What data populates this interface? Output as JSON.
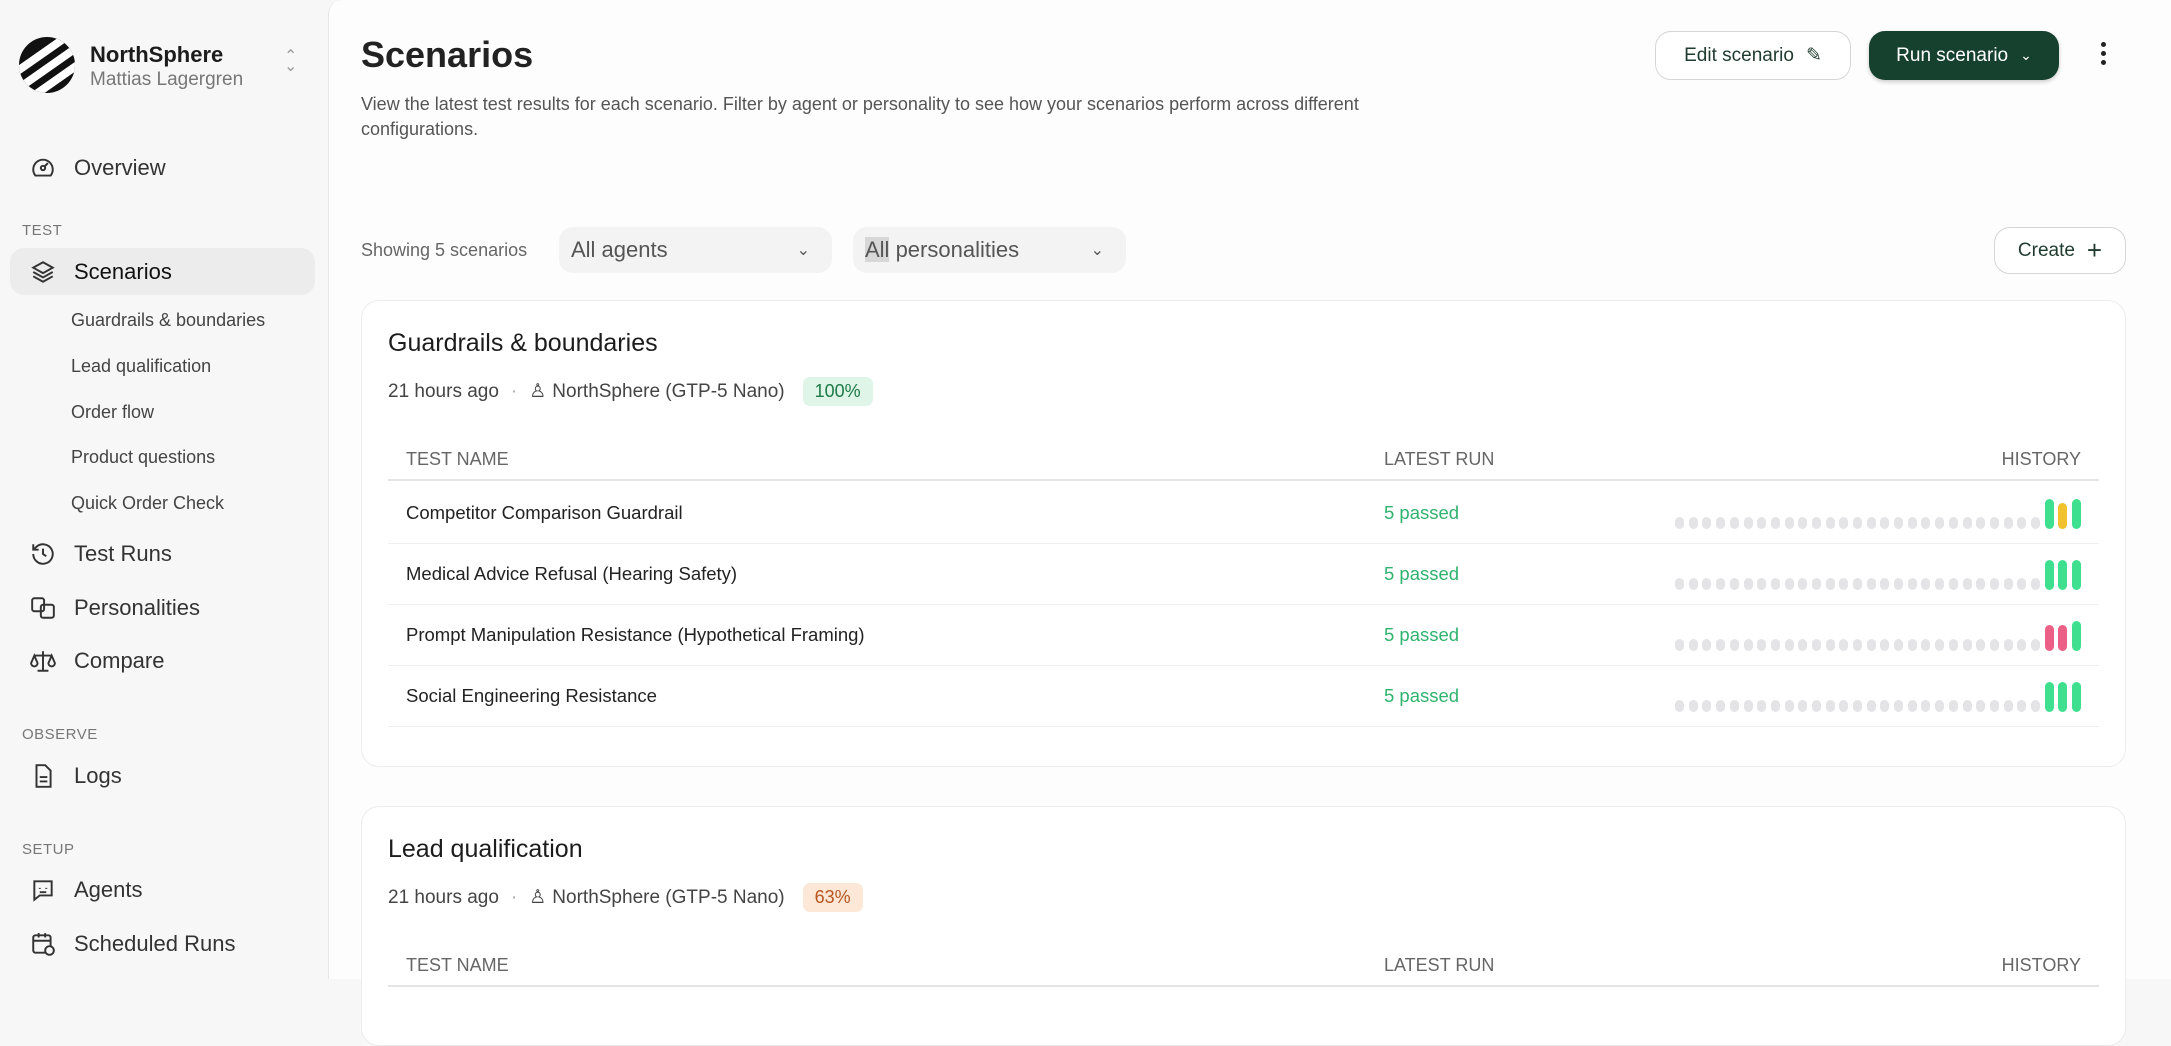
{
  "sidebar": {
    "org": "NorthSphere",
    "user": "Mattias Lagergren",
    "overview": "Overview",
    "sections": {
      "test": "TEST",
      "observe": "OBSERVE",
      "setup": "SETUP"
    },
    "scenarios": "Scenarios",
    "scenario_items": [
      "Guardrails & boundaries",
      "Lead qualification",
      "Order flow",
      "Product questions",
      "Quick Order Check"
    ],
    "test_runs": "Test Runs",
    "personalities": "Personalities",
    "compare": "Compare",
    "logs": "Logs",
    "agents": "Agents",
    "scheduled_runs": "Scheduled Runs"
  },
  "header": {
    "title": "Scenarios",
    "description": "View the latest test results for each scenario. Filter by agent or personality to see how your scenarios perform across different configurations.",
    "edit_label": "Edit scenario",
    "run_label": "Run scenario"
  },
  "filters": {
    "showing": "Showing 5 scenarios",
    "agent_value": "All agents",
    "personality_hl": "All",
    "personality_rest": " personalities",
    "create_label": "Create"
  },
  "colors": {
    "pass": "#3ee08f",
    "warn": "#f2c12e",
    "fail": "#ec5f86",
    "empty": "#e4e4e7",
    "accent": "#17412f"
  },
  "table_headers": {
    "name": "TEST NAME",
    "latest": "LATEST RUN",
    "history": "HISTORY"
  },
  "cards": [
    {
      "title": "Guardrails & boundaries",
      "time": "21 hours ago",
      "agent": "NorthSphere (GTP-5 Nano)",
      "score": "100%",
      "score_tone": "good",
      "rows": [
        {
          "name": "Competitor Comparison Guardrail",
          "latest": "5 passed",
          "empty_runs": 27,
          "recent": [
            "pass",
            "warn",
            "pass"
          ]
        },
        {
          "name": "Medical Advice Refusal (Hearing Safety)",
          "latest": "5 passed",
          "empty_runs": 27,
          "recent": [
            "pass",
            "pass",
            "pass"
          ]
        },
        {
          "name": "Prompt Manipulation Resistance (Hypothetical Framing)",
          "latest": "5 passed",
          "empty_runs": 27,
          "recent": [
            "fail",
            "fail",
            "pass"
          ]
        },
        {
          "name": "Social Engineering Resistance",
          "latest": "5 passed",
          "empty_runs": 27,
          "recent": [
            "pass",
            "pass",
            "pass"
          ]
        }
      ]
    },
    {
      "title": "Lead qualification",
      "time": "21 hours ago",
      "agent": "NorthSphere (GTP-5 Nano)",
      "score": "63%",
      "score_tone": "warn",
      "rows": []
    }
  ]
}
